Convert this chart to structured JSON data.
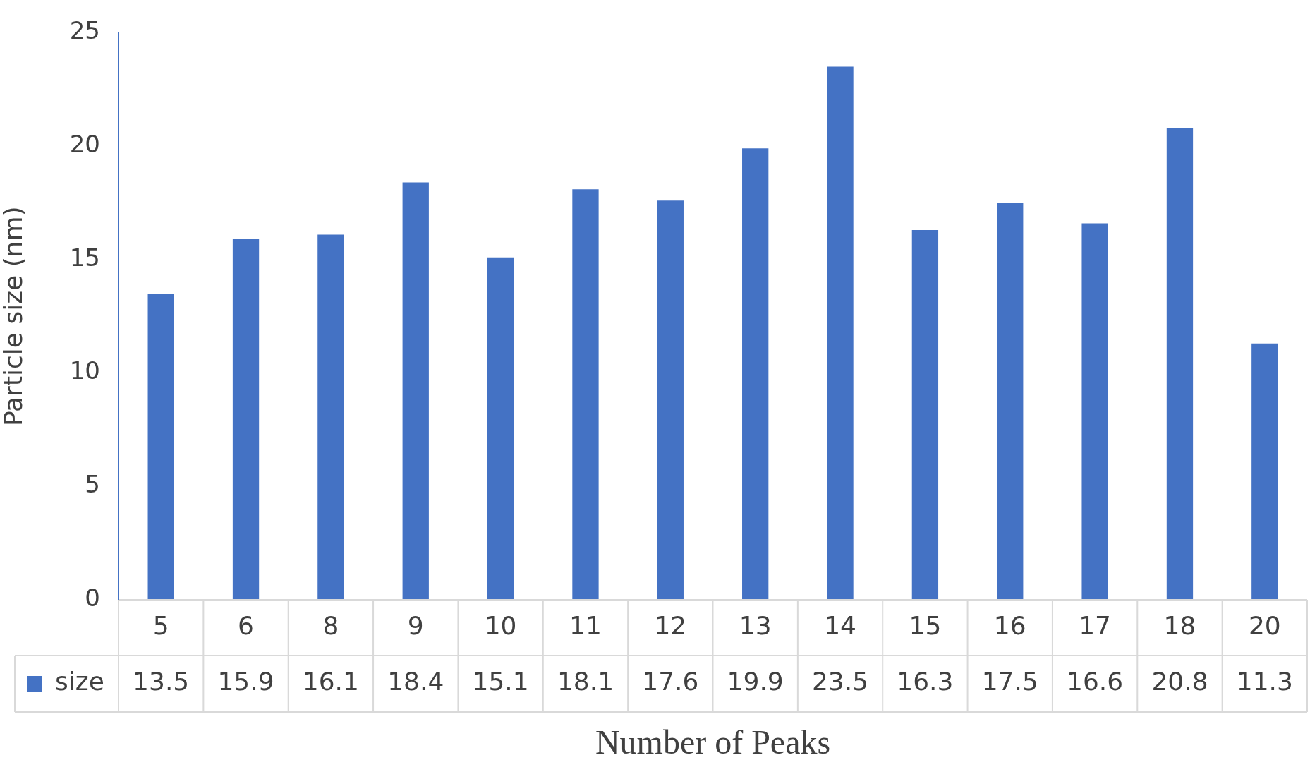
{
  "chart_data": {
    "type": "bar",
    "xlabel": "Number of Peaks",
    "ylabel": "Particle size (nm)",
    "categories": [
      "5",
      "6",
      "8",
      "9",
      "10",
      "11",
      "12",
      "13",
      "14",
      "15",
      "16",
      "17",
      "18",
      "20"
    ],
    "series": [
      {
        "name": "size",
        "color": "#4472c4",
        "values": [
          13.5,
          15.9,
          16.1,
          18.4,
          15.1,
          18.1,
          17.6,
          19.9,
          23.5,
          16.3,
          17.5,
          16.6,
          20.8,
          11.3
        ]
      }
    ],
    "ylim": [
      0,
      25
    ],
    "yticks": [
      0,
      5,
      10,
      15,
      20,
      25
    ],
    "grid": false,
    "legend": "bottom",
    "data_labels": true
  }
}
